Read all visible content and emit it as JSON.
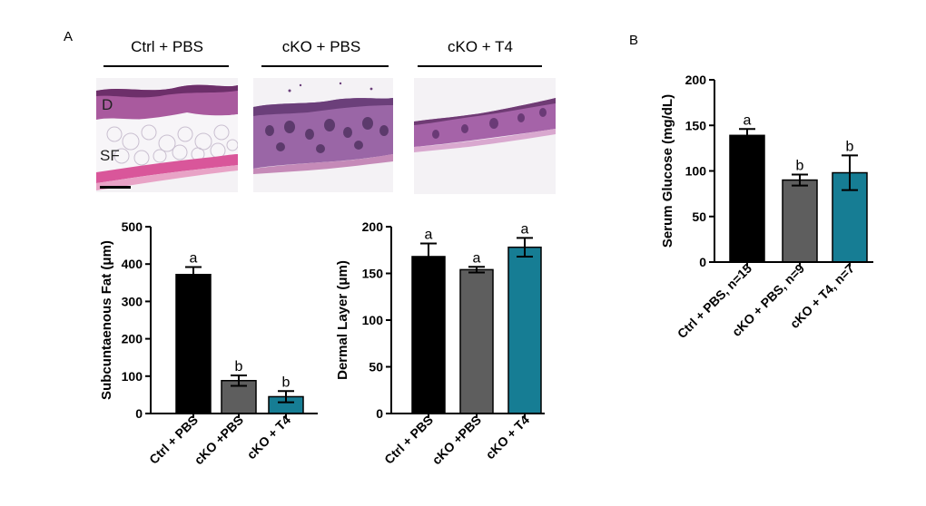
{
  "panels": {
    "a": "A",
    "b": "B"
  },
  "histology": {
    "groups": [
      "Ctrl + PBS",
      "cKO + PBS",
      "cKO + T4"
    ],
    "labels": {
      "dermis": "D",
      "fat": "SF"
    }
  },
  "colors": {
    "ctrl": "#000000",
    "cko": "#5e5e5e",
    "t4": "#167d94"
  },
  "chart_data": [
    {
      "type": "bar",
      "title": "",
      "xlabel": "",
      "ylabel": "Subcuntaenous  Fat (μm)",
      "categories": [
        "Ctrl + PBS",
        "cKO +PBS",
        "cKO + T4"
      ],
      "values": [
        372,
        88,
        45
      ],
      "errors": [
        20,
        14,
        15
      ],
      "sig_letters": [
        "a",
        "b",
        "b"
      ],
      "colors": [
        "#000000",
        "#5e5e5e",
        "#167d94"
      ],
      "ylim": [
        0,
        500
      ],
      "yticks": [
        0,
        100,
        200,
        300,
        400,
        500
      ],
      "yticklabels": [
        "0",
        "100",
        "200",
        "300",
        "400",
        "500"
      ]
    },
    {
      "type": "bar",
      "title": "",
      "xlabel": "",
      "ylabel": "Dermal Layer (μm)",
      "categories": [
        "Ctrl + PBS",
        "cKO +PBS",
        "cKO + T4"
      ],
      "values": [
        168,
        154,
        178
      ],
      "errors": [
        14,
        3,
        10
      ],
      "sig_letters": [
        "a",
        "a",
        "a"
      ],
      "colors": [
        "#000000",
        "#5e5e5e",
        "#167d94"
      ],
      "ylim": [
        0,
        200
      ],
      "yticks": [
        0,
        50,
        100,
        150,
        200
      ],
      "yticklabels": [
        "0",
        "50",
        "100",
        "150",
        "200"
      ]
    },
    {
      "type": "bar",
      "title": "",
      "xlabel": "",
      "ylabel": "Serum  Glucose (mg/dL)",
      "categories": [
        "Ctrl + PBS, n=15",
        "cKO + PBS, n=9",
        "cKO + T4, n=7"
      ],
      "values": [
        139,
        90,
        98
      ],
      "errors": [
        7,
        6,
        19
      ],
      "sig_letters": [
        "a",
        "b",
        "b"
      ],
      "colors": [
        "#000000",
        "#5e5e5e",
        "#167d94"
      ],
      "ylim": [
        0,
        200
      ],
      "yticks": [
        0,
        50,
        100,
        150,
        200
      ],
      "yticklabels": [
        "0",
        "50",
        "100",
        "150",
        "200"
      ]
    }
  ]
}
